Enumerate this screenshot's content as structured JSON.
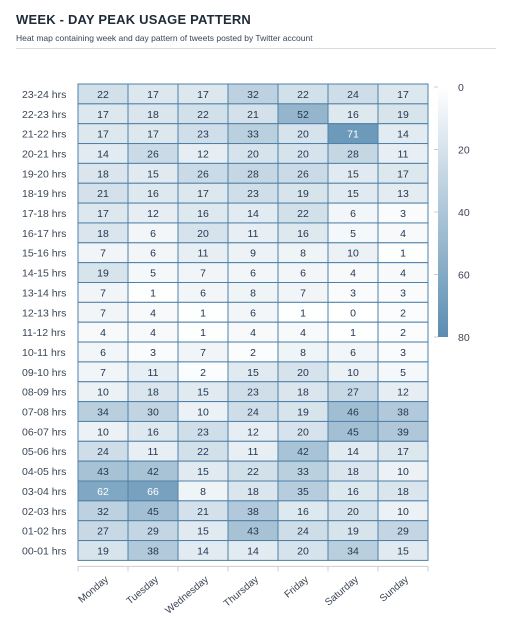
{
  "title": "WEEK - DAY PEAK USAGE PATTERN",
  "subtitle": "Heat map containing week and day pattern of tweets posted by Twitter account",
  "chart_data": {
    "type": "heatmap",
    "x_categories": [
      "Monday",
      "Tuesday",
      "Wednesday",
      "Thursday",
      "Friday",
      "Saturday",
      "Sunday"
    ],
    "y_categories": [
      "23-24 hrs",
      "22-23 hrs",
      "21-22 hrs",
      "20-21 hrs",
      "19-20 hrs",
      "18-19 hrs",
      "17-18 hrs",
      "16-17 hrs",
      "15-16 hrs",
      "14-15 hrs",
      "13-14 hrs",
      "12-13 hrs",
      "11-12 hrs",
      "10-11 hrs",
      "09-10 hrs",
      "08-09 hrs",
      "07-08 hrs",
      "06-07 hrs",
      "05-06 hrs",
      "04-05 hrs",
      "03-04 hrs",
      "02-03 hrs",
      "01-02 hrs",
      "00-01 hrs"
    ],
    "values": [
      [
        22,
        17,
        17,
        32,
        22,
        24,
        17
      ],
      [
        17,
        18,
        22,
        21,
        52,
        16,
        19
      ],
      [
        17,
        17,
        23,
        33,
        20,
        71,
        14
      ],
      [
        14,
        26,
        12,
        20,
        20,
        28,
        11
      ],
      [
        18,
        15,
        26,
        28,
        26,
        15,
        17
      ],
      [
        21,
        16,
        17,
        23,
        19,
        15,
        13
      ],
      [
        17,
        12,
        16,
        14,
        22,
        6,
        3
      ],
      [
        18,
        6,
        20,
        11,
        16,
        5,
        4
      ],
      [
        7,
        6,
        11,
        9,
        8,
        10,
        1
      ],
      [
        19,
        5,
        7,
        6,
        6,
        4,
        4
      ],
      [
        7,
        1,
        6,
        8,
        7,
        3,
        3
      ],
      [
        7,
        4,
        1,
        6,
        1,
        0,
        2
      ],
      [
        4,
        4,
        1,
        4,
        4,
        1,
        2
      ],
      [
        6,
        3,
        7,
        2,
        8,
        6,
        3
      ],
      [
        7,
        11,
        2,
        15,
        20,
        10,
        5
      ],
      [
        10,
        18,
        15,
        23,
        18,
        27,
        12
      ],
      [
        34,
        30,
        10,
        24,
        19,
        46,
        38
      ],
      [
        10,
        16,
        23,
        12,
        20,
        45,
        39
      ],
      [
        24,
        11,
        22,
        11,
        42,
        14,
        17
      ],
      [
        43,
        42,
        15,
        22,
        33,
        18,
        10
      ],
      [
        62,
        66,
        8,
        18,
        35,
        16,
        18
      ],
      [
        32,
        45,
        21,
        38,
        16,
        20,
        10
      ],
      [
        27,
        29,
        15,
        43,
        24,
        19,
        29
      ],
      [
        19,
        38,
        14,
        14,
        20,
        34,
        15
      ]
    ],
    "color_scale": {
      "min": 0,
      "max": 80,
      "low_color": "#ffffff",
      "high_color": "#5b8db1",
      "ticks": [
        0,
        20,
        40,
        60,
        80
      ]
    },
    "legend_position": "right",
    "grid": true
  }
}
